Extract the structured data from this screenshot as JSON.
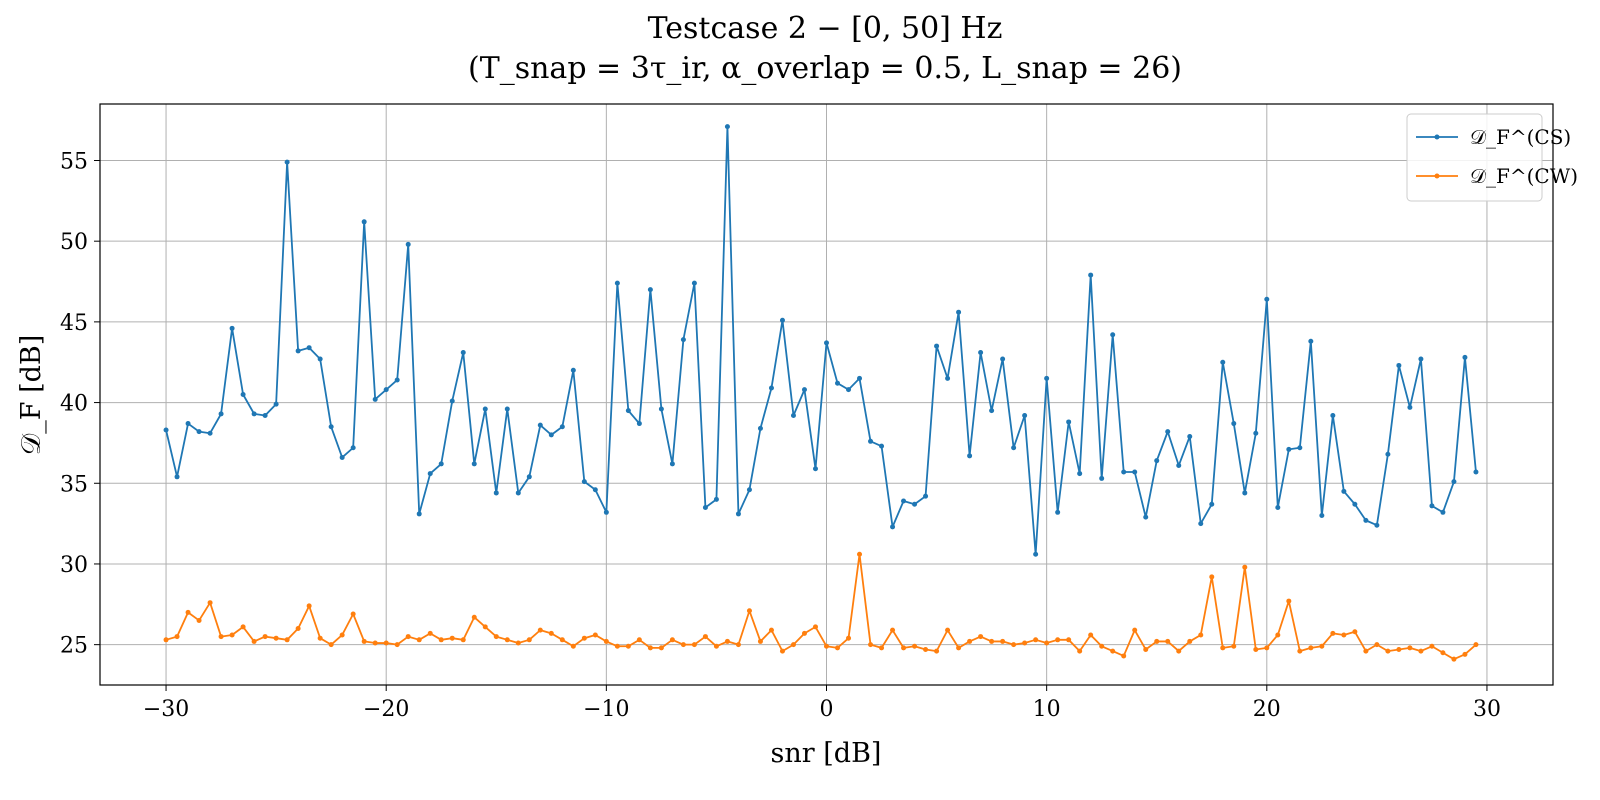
{
  "chart_data": {
    "type": "line",
    "title": "Testcase 2 − [0, 50] Hz",
    "subtitle": "(T_snap = 3τ_ir,   α_overlap = 0.5,   L_snap = 26)",
    "xlabel": "snr [dB]",
    "ylabel": "𝒟_F [dB]",
    "xlim": [
      -33,
      33
    ],
    "ylim": [
      22.5,
      58.5
    ],
    "xticks": [
      -30,
      -20,
      -10,
      0,
      10,
      20,
      30
    ],
    "xtick_labels": [
      "−30",
      "−20",
      "−10",
      "0",
      "10",
      "20",
      "30"
    ],
    "yticks": [
      25,
      30,
      35,
      40,
      45,
      50,
      55
    ],
    "ytick_labels": [
      "25",
      "30",
      "35",
      "40",
      "45",
      "50",
      "55"
    ],
    "grid": true,
    "legend_position": "top-right",
    "x": [
      -30,
      -29.5,
      -29,
      -28.5,
      -28,
      -27.5,
      -27,
      -26.5,
      -26,
      -25.5,
      -25,
      -24.5,
      -24,
      -23.5,
      -23,
      -22.5,
      -22,
      -21.5,
      -21,
      -20.5,
      -20,
      -19.5,
      -19,
      -18.5,
      -18,
      -17.5,
      -17,
      -16.5,
      -16,
      -15.5,
      -15,
      -14.5,
      -14,
      -13.5,
      -13,
      -12.5,
      -12,
      -11.5,
      -11,
      -10.5,
      -10,
      -9.5,
      -9,
      -8.5,
      -8,
      -7.5,
      -7,
      -6.5,
      -6,
      -5.5,
      -5,
      -4.5,
      -4,
      -3.5,
      -3,
      -2.5,
      -2,
      -1.5,
      -1,
      -0.5,
      0,
      0.5,
      1,
      1.5,
      2,
      2.5,
      3,
      3.5,
      4,
      4.5,
      5,
      5.5,
      6,
      6.5,
      7,
      7.5,
      8,
      8.5,
      9,
      9.5,
      10,
      10.5,
      11,
      11.5,
      12,
      12.5,
      13,
      13.5,
      14,
      14.5,
      15,
      15.5,
      16,
      16.5,
      17,
      17.5,
      18,
      18.5,
      19,
      19.5,
      20,
      20.5,
      21,
      21.5,
      22,
      22.5,
      23,
      23.5,
      24,
      24.5,
      25,
      25.5,
      26,
      26.5,
      27,
      27.5,
      28,
      28.5,
      29,
      29.5
    ],
    "series": [
      {
        "name": "𝒟_F^(CS)",
        "color": "#1f77b4",
        "values": [
          38.3,
          35.4,
          38.7,
          38.2,
          38.1,
          39.3,
          44.6,
          40.5,
          39.3,
          39.2,
          39.9,
          54.9,
          43.2,
          43.4,
          42.7,
          38.5,
          36.6,
          37.2,
          51.2,
          40.2,
          40.8,
          41.4,
          49.8,
          33.1,
          35.6,
          36.2,
          40.1,
          43.1,
          36.2,
          39.6,
          34.4,
          39.6,
          34.4,
          35.4,
          38.6,
          38.0,
          38.5,
          42.0,
          35.1,
          34.6,
          33.2,
          47.4,
          39.5,
          38.7,
          47.0,
          39.6,
          36.2,
          43.9,
          47.4,
          33.5,
          34.0,
          57.1,
          33.1,
          34.6,
          38.4,
          40.9,
          45.1,
          39.2,
          40.8,
          35.9,
          43.7,
          41.2,
          40.8,
          41.5,
          37.6,
          37.3,
          32.3,
          33.9,
          33.7,
          34.2,
          43.5,
          41.5,
          45.6,
          36.7,
          43.1,
          39.5,
          42.7,
          37.2,
          39.2,
          30.6,
          41.5,
          33.2,
          38.8,
          35.6,
          47.9,
          35.3,
          44.2,
          35.7,
          35.7,
          32.9,
          36.4,
          38.2,
          36.1,
          37.9,
          32.5,
          33.7,
          42.5,
          38.7,
          34.4,
          38.1,
          46.4,
          33.5,
          37.1,
          37.2,
          43.8,
          33.0,
          39.2,
          34.5,
          33.7,
          32.7,
          32.4,
          36.8,
          42.3,
          39.7,
          42.7,
          33.6,
          33.2,
          35.1,
          42.8,
          35.7
        ]
      },
      {
        "name": "𝒟_F^(CW)",
        "color": "#ff7f0e",
        "values": [
          25.3,
          25.5,
          27.0,
          26.5,
          27.6,
          25.5,
          25.6,
          26.1,
          25.2,
          25.5,
          25.4,
          25.3,
          26.0,
          27.4,
          25.4,
          25.0,
          25.6,
          26.9,
          25.2,
          25.1,
          25.1,
          25.0,
          25.5,
          25.3,
          25.7,
          25.3,
          25.4,
          25.3,
          26.7,
          26.1,
          25.5,
          25.3,
          25.1,
          25.3,
          25.9,
          25.7,
          25.3,
          24.9,
          25.4,
          25.6,
          25.2,
          24.9,
          24.9,
          25.3,
          24.8,
          24.8,
          25.3,
          25.0,
          25.0,
          25.5,
          24.9,
          25.2,
          25.0,
          27.1,
          25.2,
          25.9,
          24.6,
          25.0,
          25.7,
          26.1,
          24.9,
          24.8,
          25.4,
          30.6,
          25.0,
          24.8,
          25.9,
          24.8,
          24.9,
          24.7,
          24.6,
          25.9,
          24.8,
          25.2,
          25.5,
          25.2,
          25.2,
          25.0,
          25.1,
          25.3,
          25.1,
          25.3,
          25.3,
          24.6,
          25.6,
          24.9,
          24.6,
          24.3,
          25.9,
          24.7,
          25.2,
          25.2,
          24.6,
          25.2,
          25.6,
          29.2,
          24.8,
          24.9,
          29.8,
          24.7,
          24.8,
          25.6,
          27.7,
          24.6,
          24.8,
          24.9,
          25.7,
          25.6,
          25.8,
          24.6,
          25.0,
          24.6,
          24.7,
          24.8,
          24.6,
          24.9,
          24.5,
          24.1,
          24.4,
          25.0
        ]
      }
    ]
  }
}
